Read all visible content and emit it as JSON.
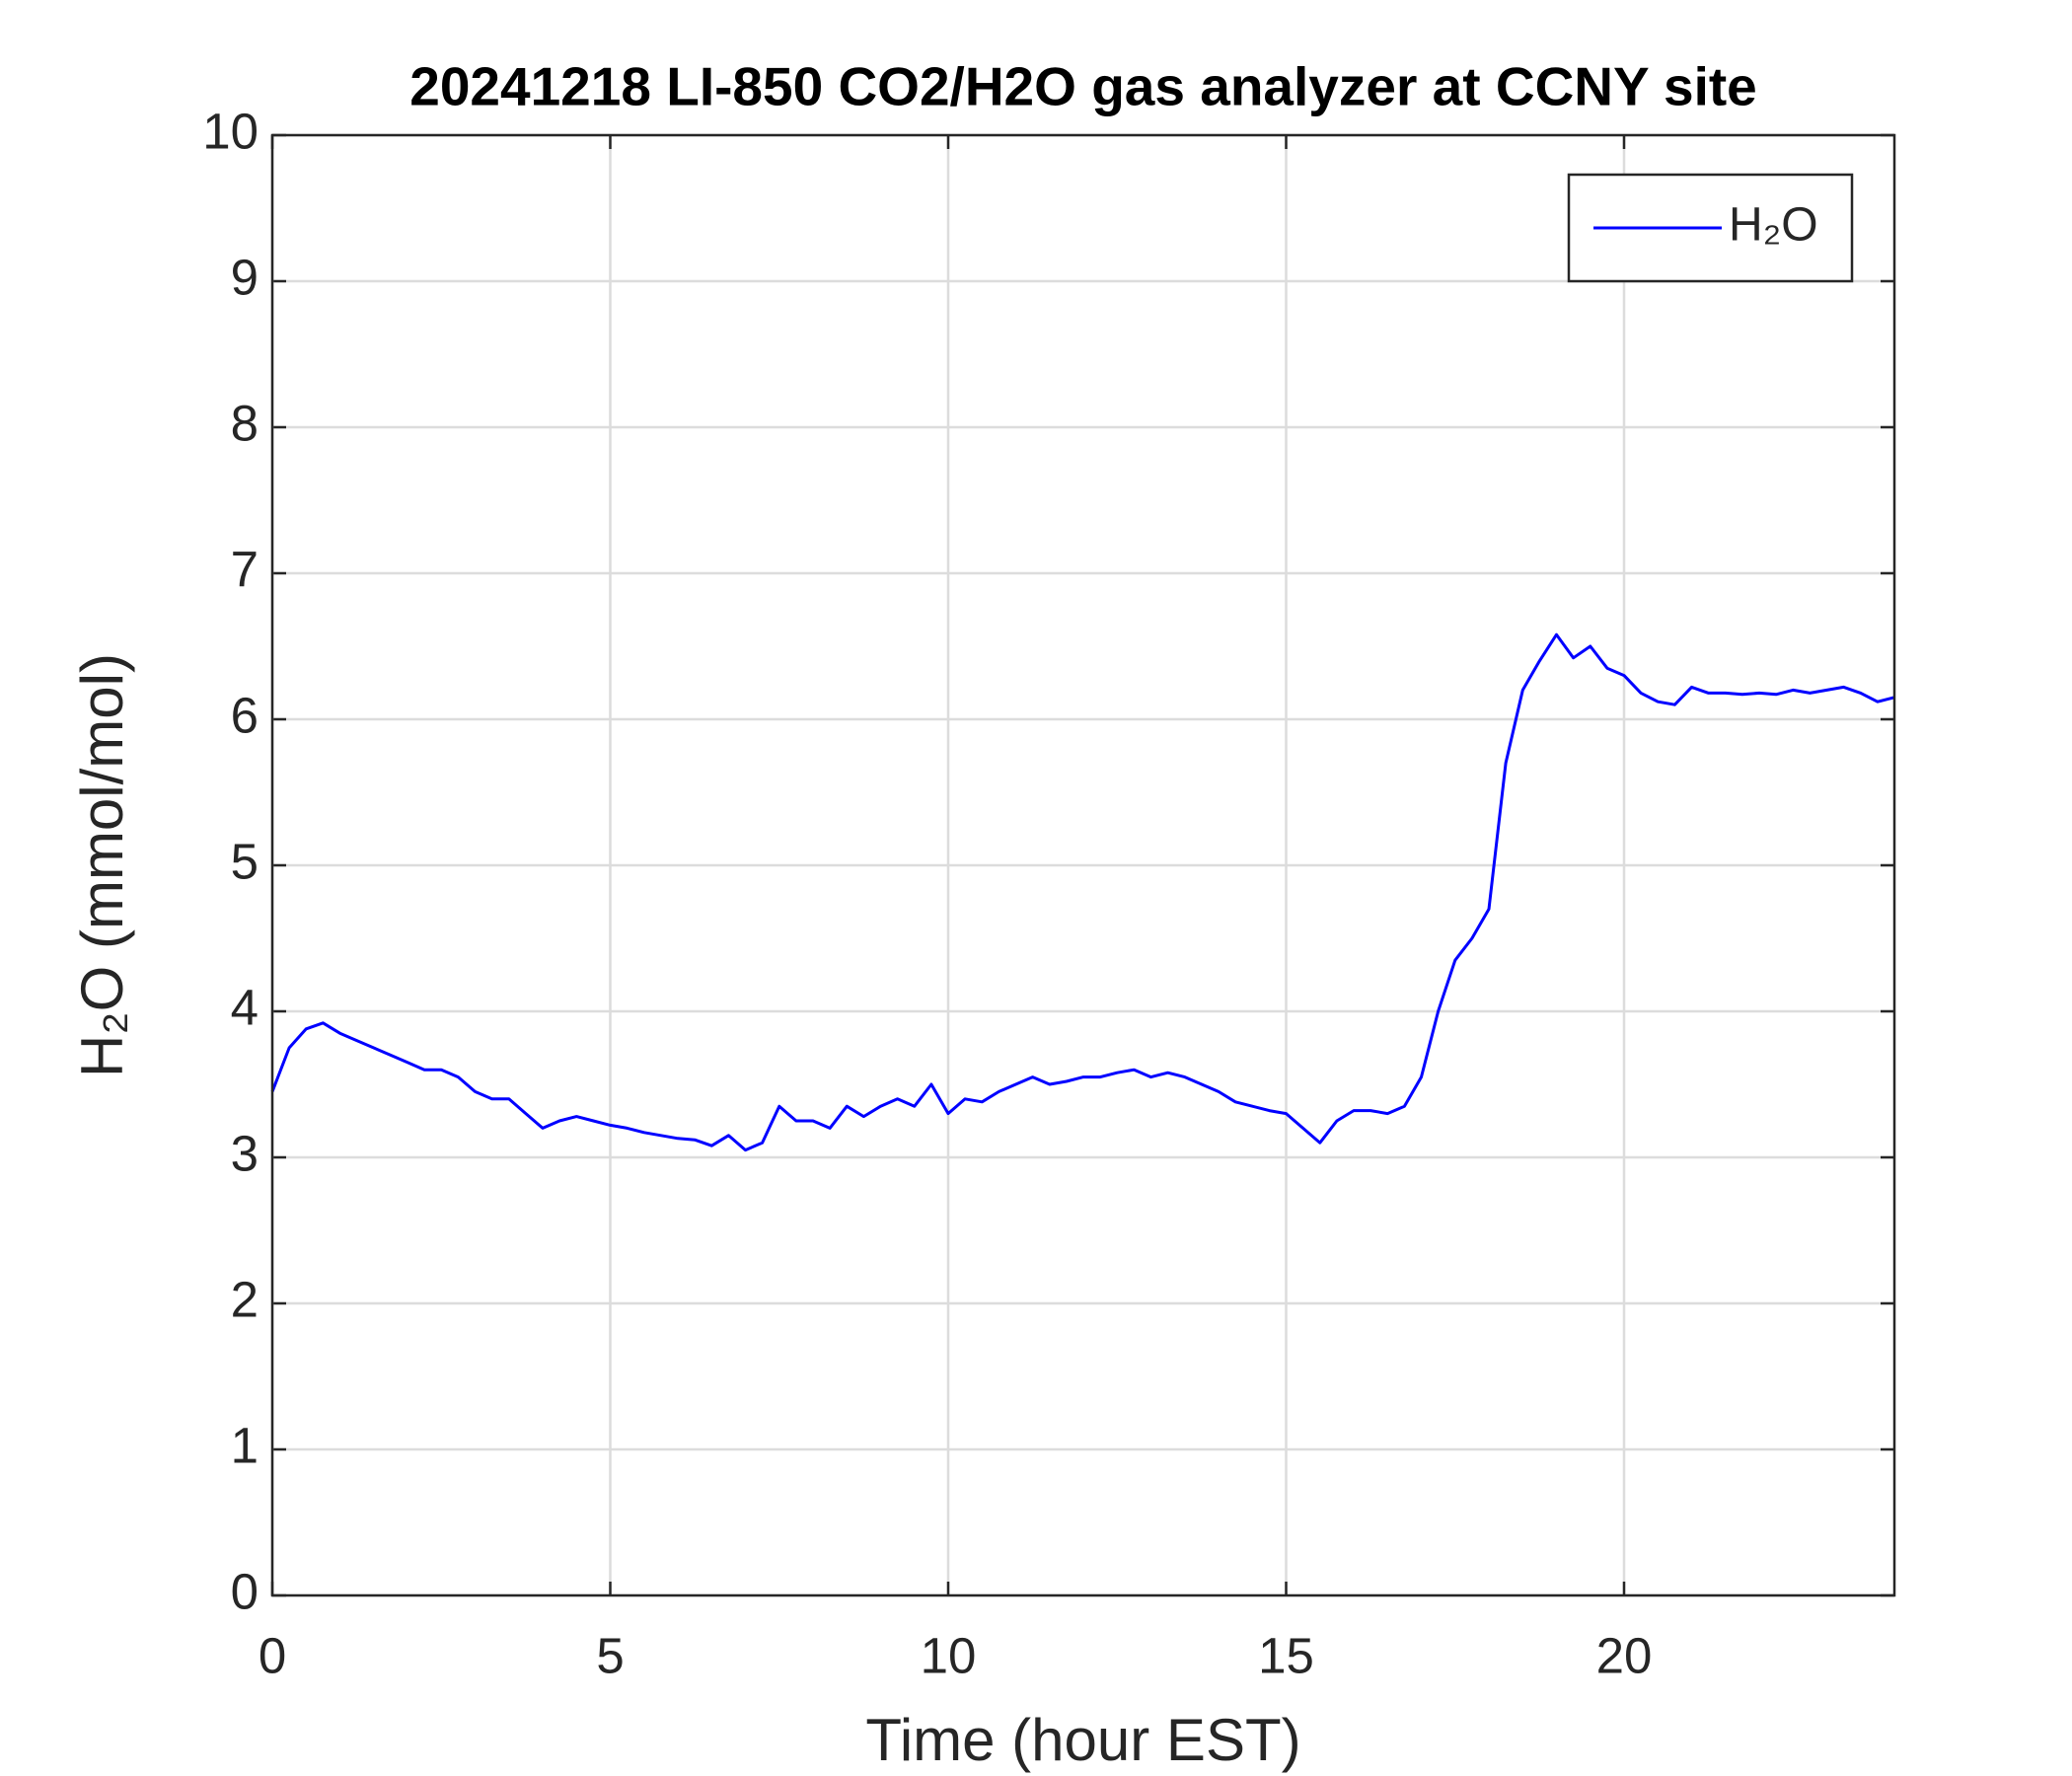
{
  "chart_data": {
    "type": "line",
    "title": "20241218 LI-850 CO2/H2O gas analyzer at CCNY site",
    "x_label": "Time (hour EST)",
    "y_label": "H₂O (mmol/mol)",
    "xlim": [
      0,
      24
    ],
    "xticks": [
      0,
      5,
      10,
      15,
      20
    ],
    "ylim": [
      0,
      10
    ],
    "yticks": [
      0,
      1,
      2,
      3,
      4,
      5,
      6,
      7,
      8,
      9,
      10
    ],
    "grid": true,
    "legend": "upper right",
    "x": [
      0,
      0.25,
      0.5,
      0.75,
      1,
      1.25,
      1.5,
      1.75,
      2,
      2.25,
      2.5,
      2.75,
      3,
      3.25,
      3.5,
      3.75,
      4,
      4.25,
      4.5,
      4.75,
      5,
      5.25,
      5.5,
      5.75,
      6,
      6.25,
      6.5,
      6.75,
      7,
      7.25,
      7.5,
      7.75,
      8,
      8.25,
      8.5,
      8.75,
      9,
      9.25,
      9.5,
      9.75,
      10,
      10.25,
      10.5,
      10.75,
      11,
      11.25,
      11.5,
      11.75,
      12,
      12.25,
      12.5,
      12.75,
      13,
      13.25,
      13.5,
      13.75,
      14,
      14.25,
      14.5,
      14.75,
      15,
      15.25,
      15.5,
      15.75,
      16,
      16.25,
      16.5,
      16.75,
      17,
      17.25,
      17.5,
      17.75,
      18,
      18.25,
      18.5,
      18.75,
      19,
      19.25,
      19.5,
      19.75,
      20,
      20.25,
      20.5,
      20.75,
      21,
      21.25,
      21.5,
      21.75,
      22,
      22.25,
      22.5,
      22.75,
      23,
      23.25,
      23.5,
      23.75,
      24
    ],
    "series": [
      {
        "name": "H₂O",
        "color": "#0000ff",
        "values": [
          3.45,
          3.75,
          3.88,
          3.92,
          3.85,
          3.8,
          3.75,
          3.7,
          3.65,
          3.6,
          3.6,
          3.55,
          3.45,
          3.4,
          3.4,
          3.3,
          3.2,
          3.25,
          3.28,
          3.25,
          3.22,
          3.2,
          3.17,
          3.15,
          3.13,
          3.12,
          3.08,
          3.15,
          3.05,
          3.1,
          3.35,
          3.25,
          3.25,
          3.2,
          3.35,
          3.28,
          3.35,
          3.4,
          3.35,
          3.5,
          3.3,
          3.4,
          3.38,
          3.45,
          3.5,
          3.55,
          3.5,
          3.52,
          3.55,
          3.55,
          3.58,
          3.6,
          3.55,
          3.58,
          3.55,
          3.5,
          3.45,
          3.38,
          3.35,
          3.32,
          3.3,
          3.2,
          3.1,
          3.25,
          3.32,
          3.32,
          3.3,
          3.35,
          3.55,
          4,
          4.35,
          4.5,
          4.7,
          5.7,
          6.2,
          6.4,
          6.58,
          6.42,
          6.5,
          6.35,
          6.3,
          6.18,
          6.12,
          6.1,
          6.22,
          6.18,
          6.18,
          6.17,
          6.18,
          6.17,
          6.2,
          6.18,
          6.2,
          6.22,
          6.18,
          6.12,
          6.15
        ]
      }
    ]
  }
}
